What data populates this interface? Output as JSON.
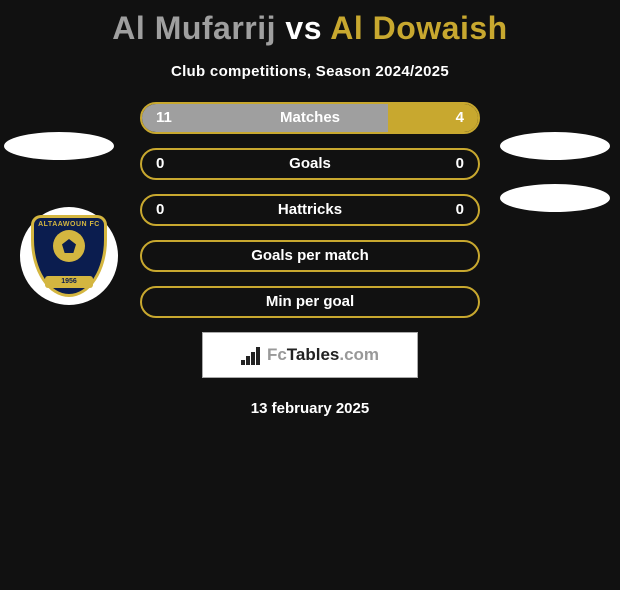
{
  "title": {
    "player1": "Al Mufarrij",
    "vs": "vs",
    "player2": "Al Dowaish"
  },
  "subtitle": "Club competitions, Season 2024/2025",
  "colors": {
    "player1": "#9f9f9f",
    "player2": "#c8a82f",
    "bar_border": "#c8a82f",
    "background": "#111111",
    "text": "#ffffff"
  },
  "club_logo": {
    "top_text": "ALTAAWOUN FC",
    "bottom_text": "1956",
    "shield_color": "#0b1d4f",
    "trim_color": "#d4b640"
  },
  "bars": [
    {
      "label": "Matches",
      "left_value": "11",
      "right_value": "4",
      "left_num": 11,
      "right_num": 4,
      "show_values": true
    },
    {
      "label": "Goals",
      "left_value": "0",
      "right_value": "0",
      "left_num": 0,
      "right_num": 0,
      "show_values": true
    },
    {
      "label": "Hattricks",
      "left_value": "0",
      "right_value": "0",
      "left_num": 0,
      "right_num": 0,
      "show_values": true
    },
    {
      "label": "Goals per match",
      "left_value": "",
      "right_value": "",
      "left_num": 0,
      "right_num": 0,
      "show_values": false
    },
    {
      "label": "Min per goal",
      "left_value": "",
      "right_value": "",
      "left_num": 0,
      "right_num": 0,
      "show_values": false
    }
  ],
  "watermark": {
    "icon": "bar-chart-icon",
    "text_prefix": "Fc",
    "text_main": "Tables",
    "text_suffix": ".com"
  },
  "date": "13 february 2025"
}
